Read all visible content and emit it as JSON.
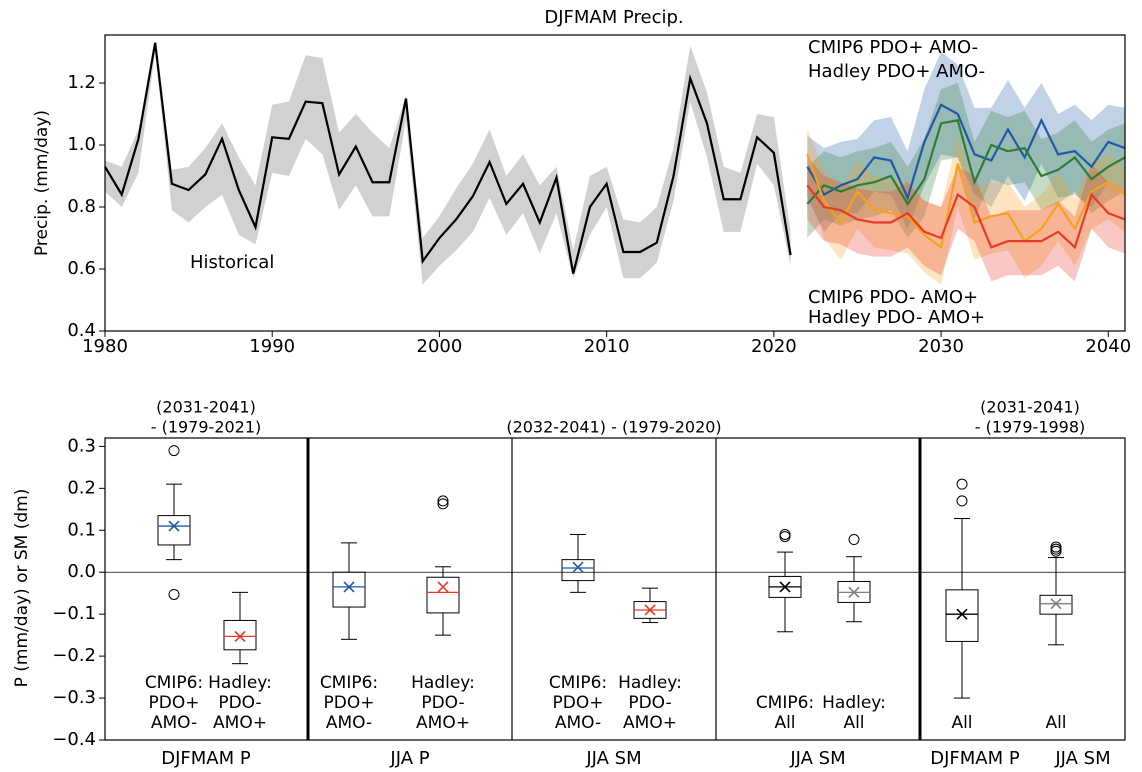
{
  "chart_data": [
    {
      "type": "line",
      "title": "DJFMAM Precip.",
      "ylabel": "Precip. (mm/day)",
      "xlim": [
        1980,
        2041
      ],
      "ylim": [
        0.4,
        1.355
      ],
      "xticks": [
        1980,
        1990,
        2000,
        2010,
        2020,
        2030,
        2040
      ],
      "yticks": [
        0.4,
        0.6,
        0.8,
        {
          "value": 1,
          "label": "1.0"
        },
        1.2
      ],
      "series": [
        {
          "name": "Historical",
          "color": "#000000",
          "x": [
            1980,
            1981,
            1982,
            1983,
            1984,
            1985,
            1986,
            1987,
            1988,
            1989,
            1990,
            1991,
            1992,
            1993,
            1994,
            1995,
            1996,
            1997,
            1998,
            1999,
            2000,
            2001,
            2002,
            2003,
            2004,
            2005,
            2006,
            2007,
            2008,
            2009,
            2010,
            2011,
            2012,
            2013,
            2014,
            2015,
            2016,
            2017,
            2018,
            2019,
            2020,
            2021
          ],
          "values": [
            0.93,
            0.84,
            1.02,
            1.33,
            0.875,
            0.855,
            0.905,
            1.02,
            0.855,
            0.735,
            1.025,
            1.02,
            1.14,
            1.135,
            0.905,
            0.995,
            0.88,
            0.88,
            1.15,
            0.625,
            0.7,
            0.76,
            0.835,
            0.945,
            0.81,
            0.875,
            0.75,
            0.895,
            0.585,
            0.8,
            0.875,
            0.655,
            0.655,
            0.685,
            0.9,
            1.215,
            1.07,
            0.825,
            0.825,
            1.025,
            0.975,
            0.645
          ],
          "upper": [
            0.95,
            0.93,
            1.05,
            1.33,
            0.92,
            0.93,
            0.99,
            1.07,
            0.96,
            0.87,
            1.13,
            1.14,
            1.29,
            1.28,
            1.04,
            1.1,
            1.04,
            0.99,
            1.16,
            0.7,
            0.77,
            0.86,
            0.94,
            1.05,
            0.9,
            0.97,
            0.87,
            0.93,
            0.66,
            0.9,
            0.93,
            0.76,
            0.75,
            0.8,
            0.99,
            1.32,
            1.17,
            0.93,
            0.91,
            1.1,
            1.09,
            0.72
          ],
          "lower": [
            0.85,
            0.8,
            0.91,
            1.3,
            0.79,
            0.75,
            0.8,
            0.84,
            0.71,
            0.68,
            0.91,
            0.9,
            1.02,
            0.97,
            0.79,
            0.87,
            0.77,
            0.77,
            1.08,
            0.55,
            0.61,
            0.66,
            0.72,
            0.83,
            0.71,
            0.78,
            0.65,
            0.78,
            0.57,
            0.71,
            0.8,
            0.57,
            0.57,
            0.62,
            0.82,
            1.14,
            0.96,
            0.72,
            0.72,
            0.94,
            0.87,
            0.61
          ]
        },
        {
          "name": "CMIP6 PDO+ AMO-",
          "color": "#1f5aa6",
          "x": [
            2022,
            2023,
            2024,
            2025,
            2026,
            2027,
            2028,
            2029,
            2030,
            2031,
            2032,
            2033,
            2034,
            2035,
            2036,
            2037,
            2038,
            2039,
            2040,
            2041
          ],
          "values": [
            0.93,
            0.84,
            0.87,
            0.89,
            0.96,
            0.95,
            0.83,
            1.01,
            1.13,
            1.1,
            0.97,
            0.95,
            1.05,
            0.96,
            1.08,
            0.97,
            0.98,
            0.93,
            1.01,
            0.99
          ],
          "upper": [
            1.03,
            0.99,
            1.01,
            1.02,
            1.08,
            1.09,
            0.98,
            1.18,
            1.3,
            1.26,
            1.12,
            1.12,
            1.21,
            1.12,
            1.2,
            1.1,
            1.13,
            1.08,
            1.13,
            1.12
          ],
          "lower": [
            0.83,
            0.72,
            0.78,
            0.78,
            0.85,
            0.84,
            0.73,
            0.87,
            0.97,
            0.96,
            0.84,
            0.8,
            0.9,
            0.82,
            0.94,
            0.83,
            0.84,
            0.8,
            0.88,
            0.86
          ]
        },
        {
          "name": "Hadley PDO+ AMO-",
          "color": "#2e7d32",
          "x": [
            2022,
            2023,
            2024,
            2025,
            2026,
            2027,
            2028,
            2029,
            2030,
            2031,
            2032,
            2033,
            2034,
            2035,
            2036,
            2037,
            2038,
            2039,
            2040,
            2041
          ],
          "values": [
            0.81,
            0.87,
            0.85,
            0.87,
            0.88,
            0.9,
            0.81,
            0.89,
            1.07,
            1.08,
            0.88,
            1.0,
            0.98,
            0.99,
            0.9,
            0.92,
            0.96,
            0.89,
            0.93,
            0.96
          ],
          "upper": [
            0.93,
            0.98,
            0.96,
            0.98,
            0.99,
            1.01,
            0.93,
            1.02,
            1.18,
            1.2,
            1.01,
            1.11,
            1.09,
            1.11,
            1.02,
            1.04,
            1.08,
            1.01,
            1.05,
            1.07
          ],
          "lower": [
            0.7,
            0.76,
            0.74,
            0.76,
            0.77,
            0.79,
            0.7,
            0.77,
            0.95,
            0.96,
            0.76,
            0.89,
            0.87,
            0.88,
            0.79,
            0.81,
            0.85,
            0.78,
            0.82,
            0.85
          ]
        },
        {
          "name": "CMIP6 PDO- AMO+",
          "color": "#f5a21b",
          "x": [
            2022,
            2023,
            2024,
            2025,
            2026,
            2027,
            2028,
            2029,
            2030,
            2031,
            2032,
            2033,
            2034,
            2035,
            2036,
            2037,
            2038,
            2039,
            2040,
            2041
          ],
          "values": [
            0.97,
            0.82,
            0.75,
            0.85,
            0.79,
            0.78,
            0.77,
            0.71,
            0.67,
            0.94,
            0.75,
            0.77,
            0.78,
            0.69,
            0.73,
            0.81,
            0.73,
            0.85,
            0.88,
            0.84
          ],
          "upper": [
            1.05,
            0.92,
            0.86,
            0.95,
            0.9,
            0.89,
            0.88,
            0.82,
            0.8,
            1.03,
            0.86,
            0.88,
            0.88,
            0.8,
            0.84,
            0.91,
            0.83,
            0.94,
            0.97,
            0.93
          ],
          "lower": [
            0.86,
            0.7,
            0.63,
            0.73,
            0.67,
            0.66,
            0.65,
            0.59,
            0.55,
            0.8,
            0.63,
            0.65,
            0.66,
            0.57,
            0.61,
            0.69,
            0.61,
            0.73,
            0.76,
            0.72
          ]
        },
        {
          "name": "Hadley PDO- AMO+",
          "color": "#e8392a",
          "x": [
            2022,
            2023,
            2024,
            2025,
            2026,
            2027,
            2028,
            2029,
            2030,
            2031,
            2032,
            2033,
            2034,
            2035,
            2036,
            2037,
            2038,
            2039,
            2040,
            2041
          ],
          "values": [
            0.87,
            0.8,
            0.79,
            0.76,
            0.75,
            0.75,
            0.78,
            0.72,
            0.7,
            0.84,
            0.8,
            0.67,
            0.69,
            0.69,
            0.69,
            0.72,
            0.67,
            0.84,
            0.78,
            0.76
          ],
          "upper": [
            0.96,
            0.9,
            0.88,
            0.86,
            0.85,
            0.85,
            0.88,
            0.82,
            0.8,
            0.93,
            0.9,
            0.77,
            0.79,
            0.79,
            0.79,
            0.82,
            0.77,
            0.94,
            0.88,
            0.86
          ],
          "lower": [
            0.76,
            0.69,
            0.68,
            0.65,
            0.64,
            0.64,
            0.67,
            0.61,
            0.58,
            0.73,
            0.69,
            0.56,
            0.58,
            0.58,
            0.58,
            0.61,
            0.56,
            0.73,
            0.67,
            0.65
          ]
        }
      ]
    },
    {
      "type": "box",
      "ylabel": "P (mm/day) or SM (dm)",
      "ylim": [
        -0.4,
        0.32
      ],
      "yticks": [
        {
          "value": -0.4,
          "label": "−0.4"
        },
        {
          "value": -0.3,
          "label": "−0.3"
        },
        {
          "value": -0.2,
          "label": "−0.2"
        },
        {
          "value": -0.1,
          "label": "−0.1"
        },
        {
          "value": 0,
          "label": "0.0"
        },
        0.1,
        0.2,
        0.3
      ],
      "headers": [
        [
          "(2031-2041)",
          "- (1979-2021)"
        ],
        [
          "(2032-2041) - (1979-2020)"
        ],
        [
          "(2031-2041)",
          "- (1979-1998)"
        ]
      ],
      "panels": [
        {
          "xlabels": [
            "DJFMAM P"
          ],
          "boxes": [
            {
              "label": [
                "CMIP6:",
                "PDO+",
                "AMO-"
              ],
              "color": "#1f5aa6",
              "whislo": 0.03,
              "q1": 0.065,
              "median": 0.11,
              "q3": 0.135,
              "whishi": 0.21,
              "mean": 0.11,
              "outliers": [
                0.29,
                -0.053
              ]
            },
            {
              "label": [
                "Hadley:",
                "PDO-",
                "AMO+"
              ],
              "color": "#e8392a",
              "whislo": -0.218,
              "q1": -0.185,
              "median": -0.153,
              "q3": -0.115,
              "whishi": -0.048,
              "mean": -0.153,
              "outliers": []
            }
          ]
        },
        {
          "xlabels": [
            "JJA P"
          ],
          "boxes": [
            {
              "label": [
                "CMIP6:",
                "PDO+",
                "AMO-"
              ],
              "color": "#1f5aa6",
              "whislo": -0.16,
              "q1": -0.083,
              "median": -0.035,
              "q3": 0,
              "whishi": 0.07,
              "mean": -0.035,
              "outliers": []
            },
            {
              "label": [
                "Hadley:",
                "PDO-",
                "AMO+"
              ],
              "color": "#e8392a",
              "whislo": -0.15,
              "q1": -0.097,
              "median": -0.048,
              "q3": -0.012,
              "whishi": 0.013,
              "mean": -0.035,
              "outliers": [
                0.17,
                0.163
              ]
            }
          ]
        },
        {
          "xlabels": [
            "JJA SM"
          ],
          "boxes": [
            {
              "label": [
                "CMIP6:",
                "PDO+",
                "AMO-"
              ],
              "color": "#1f5aa6",
              "whislo": -0.048,
              "q1": -0.02,
              "median": 0.01,
              "q3": 0.03,
              "whishi": 0.09,
              "mean": 0.012,
              "outliers": []
            },
            {
              "label": [
                "Hadley:",
                "PDO-",
                "AMO+"
              ],
              "color": "#e8392a",
              "whislo": -0.12,
              "q1": -0.11,
              "median": -0.09,
              "q3": -0.07,
              "whishi": -0.038,
              "mean": -0.09,
              "outliers": []
            }
          ]
        },
        {
          "xlabels": [
            "JJA SM"
          ],
          "boxes": [
            {
              "label": [
                "CMIP6:",
                "All"
              ],
              "color": "#000000",
              "whislo": -0.142,
              "q1": -0.06,
              "median": -0.035,
              "q3": -0.01,
              "whishi": 0.048,
              "mean": -0.035,
              "outliers": [
                0.09,
                0.085
              ]
            },
            {
              "label": [
                "Hadley:",
                "All"
              ],
              "color": "#7f7f7f",
              "whislo": -0.118,
              "q1": -0.072,
              "median": -0.048,
              "q3": -0.022,
              "whishi": 0.037,
              "mean": -0.048,
              "outliers": [
                0.078
              ]
            }
          ]
        },
        {
          "xlabels": [
            "DJFMAM P",
            "JJA SM"
          ],
          "boxes": [
            {
              "label": [
                "All"
              ],
              "color": "#000000",
              "whislo": -0.3,
              "q1": -0.165,
              "median": -0.1,
              "q3": -0.042,
              "whishi": 0.128,
              "mean": -0.1,
              "outliers": [
                0.21,
                0.17
              ]
            },
            {
              "label": [
                "All"
              ],
              "color": "#7f7f7f",
              "whislo": -0.173,
              "q1": -0.1,
              "median": -0.075,
              "q3": -0.055,
              "whishi": 0.035,
              "mean": -0.075,
              "outliers": [
                0.06,
                0.055,
                0.05
              ]
            }
          ]
        }
      ]
    }
  ]
}
